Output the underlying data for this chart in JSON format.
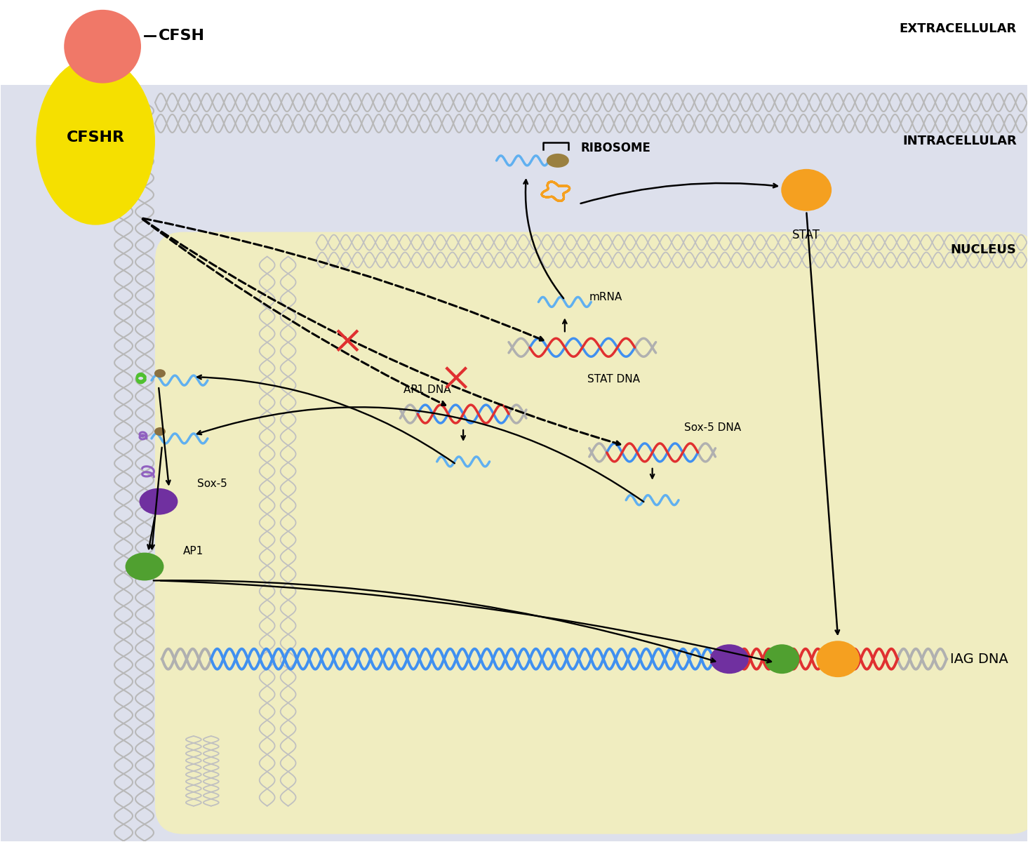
{
  "bg_white": "#ffffff",
  "bg_intracellular": "#dde0ec",
  "bg_nucleus": "#f0edc0",
  "text_extracellular": "EXTRACELLULAR",
  "text_intracellular": "INTRACELLULAR",
  "text_nucleus": "NUCLEUS",
  "text_cfsh": "CFSH",
  "text_cfshr": "CFSHR",
  "text_ribosome": "RIBOSOME",
  "text_stat": "STAT",
  "text_mrna": "mRNA",
  "text_stat_dna": "STAT DNA",
  "text_ap1_dna": "AP1 DNA",
  "text_sox5_dna": "Sox-5 DNA",
  "text_sox5": "Sox-5",
  "text_ap1": "AP1",
  "text_iag_dna": "IAG DNA",
  "cfsh_color": "#f07868",
  "cfshr_color": "#f5e000",
  "stat_color": "#f5a020",
  "ribosome_body_color": "#f5a020",
  "ribosome_small_color": "#9a8040",
  "sox5_protein_color": "#7030a0",
  "ap1_protein_color": "#50a030",
  "dna_blue": "#4090f0",
  "dna_red": "#e03030",
  "dna_gray": "#b0b0b0",
  "mrna_color": "#60b0f0",
  "membrane_color": "#b0b0b0",
  "inhibit_color": "#e03030",
  "green_spiral_color": "#50c030",
  "purple_spiral_color": "#9060c0",
  "brown_small_color": "#8a7040"
}
